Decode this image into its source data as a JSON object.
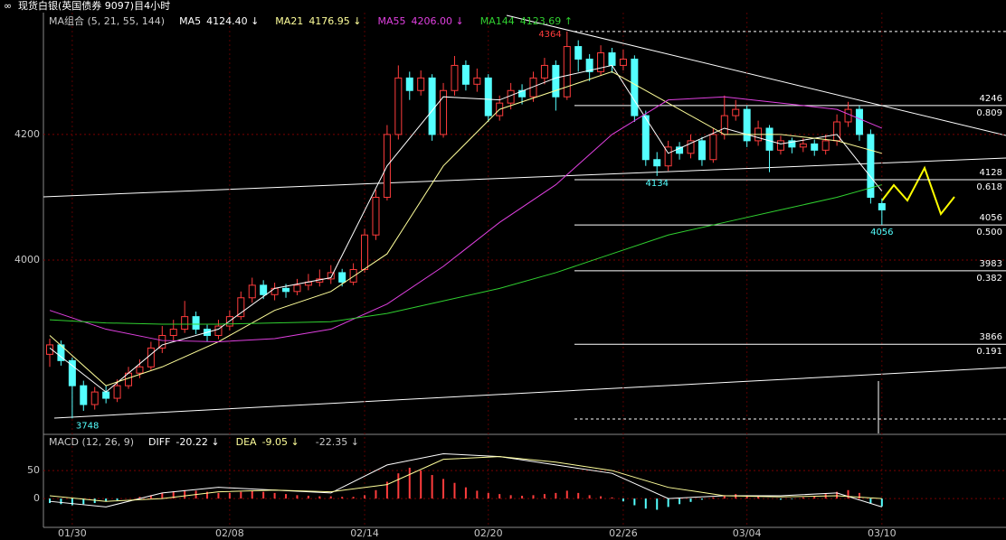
{
  "title": "现货白银(英国债券 9097)目4小时",
  "chart_data": [
    {
      "type": "candlestick",
      "legend_title": "MA组合 (5, 21, 55, 144)",
      "categories": [
        null,
        null,
        "01/30",
        null,
        null,
        null,
        null,
        null,
        null,
        null,
        null,
        null,
        null,
        null,
        null,
        null,
        "02/08",
        null,
        null,
        null,
        null,
        null,
        null,
        null,
        null,
        null,
        null,
        null,
        "02/14",
        null,
        null,
        null,
        null,
        null,
        null,
        null,
        null,
        null,
        null,
        "02/20",
        null,
        null,
        null,
        null,
        null,
        null,
        null,
        null,
        null,
        null,
        null,
        "02/26",
        null,
        null,
        null,
        null,
        null,
        null,
        null,
        null,
        null,
        null,
        "03/04",
        null,
        null,
        null,
        null,
        null,
        null,
        null,
        null,
        null,
        null,
        null,
        "03/10"
      ],
      "open": [
        3850,
        3865,
        3840,
        3800,
        3770,
        3790,
        3780,
        3800,
        3820,
        3830,
        3860,
        3880,
        3890,
        3910,
        3890,
        3880,
        3895,
        3910,
        3940,
        3960,
        3945,
        3955,
        3950,
        3960,
        3965,
        3970,
        3980,
        3965,
        3985,
        4040,
        4100,
        4200,
        4290,
        4270,
        4290,
        4200,
        4270,
        4310,
        4280,
        4290,
        4230,
        4250,
        4270,
        4260,
        4290,
        4310,
        4260,
        4340,
        4320,
        4300,
        4330,
        4310,
        4320,
        4230,
        4160,
        4150,
        4180,
        4170,
        4190,
        4160,
        4200,
        4230,
        4240,
        4190,
        4210,
        4175,
        4190,
        4180,
        4185,
        4175,
        4190,
        4220,
        4240,
        4200,
        4090
      ],
      "high": [
        3875,
        3872,
        3845,
        3808,
        3798,
        3800,
        3810,
        3830,
        3842,
        3870,
        3895,
        3905,
        3935,
        3918,
        3897,
        3905,
        3920,
        3950,
        3972,
        3968,
        3964,
        3962,
        3970,
        3978,
        3985,
        3992,
        3986,
        3995,
        4050,
        4112,
        4215,
        4310,
        4300,
        4302,
        4296,
        4282,
        4325,
        4318,
        4305,
        4296,
        4262,
        4282,
        4280,
        4300,
        4322,
        4318,
        4364,
        4350,
        4328,
        4342,
        4338,
        4335,
        4326,
        4238,
        4172,
        4190,
        4188,
        4200,
        4196,
        4210,
        4262,
        4255,
        4246,
        4222,
        4215,
        4198,
        4195,
        4194,
        4192,
        4200,
        4232,
        4252,
        4246,
        4208,
        4098
      ],
      "low": [
        3830,
        3832,
        3748,
        3760,
        3762,
        3772,
        3774,
        3795,
        3812,
        3825,
        3852,
        3872,
        3884,
        3882,
        3870,
        3874,
        3888,
        3905,
        3932,
        3938,
        3936,
        3940,
        3944,
        3952,
        3958,
        3962,
        3958,
        3960,
        3980,
        4032,
        4095,
        4192,
        4255,
        4262,
        4190,
        4195,
        4262,
        4270,
        4268,
        4220,
        4222,
        4240,
        4248,
        4252,
        4280,
        4238,
        4255,
        4300,
        4285,
        4294,
        4298,
        4302,
        4220,
        4150,
        4134,
        4142,
        4160,
        4162,
        4150,
        4155,
        4192,
        4222,
        4180,
        4182,
        4140,
        4168,
        4170,
        4172,
        4166,
        4168,
        4182,
        4212,
        4190,
        4090,
        4056
      ],
      "close": [
        3865,
        3840,
        3800,
        3770,
        3790,
        3780,
        3800,
        3820,
        3830,
        3860,
        3880,
        3890,
        3910,
        3890,
        3880,
        3895,
        3910,
        3940,
        3960,
        3945,
        3955,
        3950,
        3960,
        3965,
        3970,
        3980,
        3965,
        3985,
        4040,
        4100,
        4200,
        4290,
        4270,
        4290,
        4200,
        4270,
        4310,
        4280,
        4290,
        4230,
        4250,
        4270,
        4260,
        4290,
        4310,
        4260,
        4340,
        4320,
        4300,
        4330,
        4310,
        4320,
        4230,
        4160,
        4150,
        4180,
        4170,
        4190,
        4160,
        4200,
        4230,
        4240,
        4190,
        4210,
        4175,
        4190,
        4180,
        4185,
        4175,
        4190,
        4220,
        4240,
        4200,
        4100,
        4080
      ],
      "up_color": "#ff3c3c",
      "down_color": "#54ffff",
      "ylim": [
        3724,
        4394
      ],
      "yticks": [
        4000,
        4200
      ],
      "grid": true,
      "series": [
        {
          "name": "MA5",
          "legend_value": "4124.40 ↓",
          "color": "#ffffff",
          "x": [
            0,
            5,
            10,
            15,
            20,
            25,
            30,
            35,
            40,
            45,
            50,
            55,
            60,
            65,
            70,
            74
          ],
          "values": [
            3860,
            3790,
            3865,
            3890,
            3955,
            3972,
            4150,
            4260,
            4255,
            4290,
            4310,
            4170,
            4210,
            4185,
            4200,
            4110
          ]
        },
        {
          "name": "MA21",
          "legend_value": "4176.95 ↓",
          "color": "#ffff9a",
          "x": [
            0,
            5,
            10,
            15,
            20,
            25,
            30,
            35,
            40,
            45,
            50,
            55,
            60,
            65,
            70,
            74
          ],
          "values": [
            3880,
            3800,
            3830,
            3870,
            3920,
            3950,
            4010,
            4150,
            4240,
            4270,
            4300,
            4250,
            4200,
            4200,
            4190,
            4170
          ]
        },
        {
          "name": "MA55",
          "legend_value": "4206.00 ↓",
          "color": "#e040e0",
          "x": [
            0,
            5,
            10,
            15,
            20,
            25,
            30,
            35,
            40,
            45,
            50,
            55,
            60,
            65,
            70,
            74
          ],
          "values": [
            3920,
            3890,
            3872,
            3870,
            3875,
            3890,
            3930,
            3990,
            4060,
            4120,
            4200,
            4255,
            4260,
            4250,
            4240,
            4210
          ]
        },
        {
          "name": "MA144",
          "legend_value": "4123.69 ↑",
          "color": "#30d030",
          "x": [
            0,
            5,
            10,
            15,
            20,
            25,
            30,
            35,
            40,
            45,
            50,
            55,
            60,
            65,
            70,
            74
          ],
          "values": [
            3905,
            3900,
            3898,
            3898,
            3900,
            3902,
            3915,
            3935,
            3955,
            3980,
            4010,
            4040,
            4060,
            4080,
            4100,
            4120
          ]
        }
      ],
      "fib_levels": [
        {
          "price": 4246,
          "ratio": "0.809"
        },
        {
          "price": 4128,
          "ratio": "0.618"
        },
        {
          "price": 4056,
          "ratio": "0.500"
        },
        {
          "price": 3983,
          "ratio": "0.382"
        },
        {
          "price": 3866,
          "ratio": "0.191"
        }
      ]
    },
    {
      "type": "macd",
      "legend_title": "MACD (12, 26, 9)",
      "histogram_label": "-22.35 ↓",
      "histogram": [
        -8,
        -10,
        -12,
        -10,
        -8,
        -5,
        -3,
        0,
        3,
        6,
        10,
        13,
        15,
        14,
        12,
        10,
        10,
        12,
        14,
        12,
        10,
        8,
        6,
        5,
        4,
        4,
        3,
        3,
        6,
        15,
        30,
        45,
        55,
        50,
        42,
        35,
        28,
        20,
        14,
        10,
        8,
        6,
        5,
        6,
        8,
        10,
        14,
        10,
        6,
        4,
        2,
        -5,
        -12,
        -18,
        -20,
        -15,
        -10,
        -6,
        -2,
        2,
        6,
        8,
        6,
        3,
        0,
        -2,
        -1,
        2,
        4,
        8,
        12,
        15,
        10,
        -8,
        -14
      ],
      "up_color": "#ff3c3c",
      "down_color": "#54ffff",
      "ylim": [
        -45,
        113
      ],
      "yticks": [
        0,
        50
      ],
      "series": [
        {
          "name": "DIFF",
          "legend_value": "-20.22 ↓",
          "color": "#ffffff",
          "x": [
            0,
            5,
            10,
            15,
            20,
            25,
            30,
            35,
            40,
            45,
            50,
            55,
            60,
            65,
            70,
            74
          ],
          "values": [
            -5,
            -15,
            10,
            20,
            15,
            10,
            60,
            80,
            75,
            60,
            45,
            0,
            5,
            5,
            10,
            -15
          ]
        },
        {
          "name": "DEA",
          "legend_value": "-9.05 ↓",
          "color": "#ffff9a",
          "x": [
            0,
            5,
            10,
            15,
            20,
            25,
            30,
            35,
            40,
            45,
            50,
            55,
            60,
            65,
            70,
            74
          ],
          "values": [
            5,
            -5,
            0,
            12,
            15,
            12,
            25,
            70,
            75,
            65,
            50,
            20,
            5,
            3,
            5,
            0
          ]
        }
      ]
    }
  ]
}
